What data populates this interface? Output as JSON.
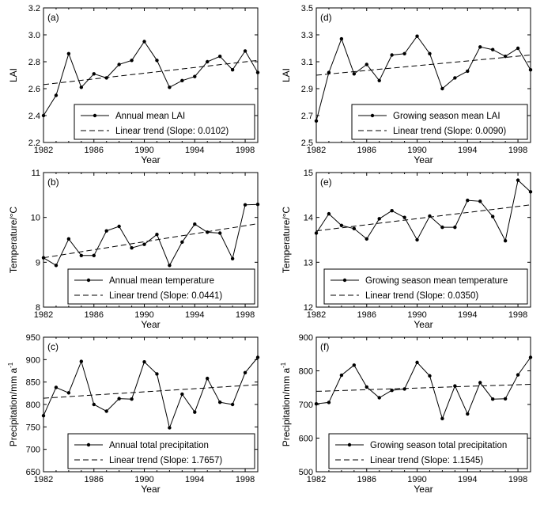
{
  "chart_data": [
    {
      "type": "line",
      "panel_label": "(a)",
      "x": [
        1982,
        1983,
        1984,
        1985,
        1986,
        1987,
        1988,
        1989,
        1990,
        1991,
        1992,
        1993,
        1994,
        1995,
        1996,
        1997,
        1998,
        1999
      ],
      "series": [
        {
          "name": "Annual mean LAI",
          "values": [
            2.4,
            2.55,
            2.86,
            2.61,
            2.71,
            2.68,
            2.78,
            2.81,
            2.95,
            2.81,
            2.61,
            2.66,
            2.69,
            2.8,
            2.84,
            2.74,
            2.88,
            2.72
          ]
        }
      ],
      "trend": {
        "name": "Linear trend (Slope: 0.0102)",
        "start": [
          1982,
          2.63
        ],
        "end": [
          1999,
          2.81
        ]
      },
      "xlabel": "Year",
      "ylabel": "LAI",
      "xlim": [
        1982,
        1999
      ],
      "ylim": [
        2.2,
        3.2
      ],
      "xticks": [
        1982,
        1986,
        1990,
        1994,
        1998
      ],
      "yticks": [
        2.2,
        2.4,
        2.6,
        2.8,
        3.0,
        3.2
      ],
      "ytick_labels": [
        "2.2",
        "2.4",
        "2.6",
        "2.8",
        "3.0",
        "3.2"
      ],
      "legend_position": "bottom-right"
    },
    {
      "type": "line",
      "panel_label": "(d)",
      "x": [
        1982,
        1983,
        1984,
        1985,
        1986,
        1987,
        1988,
        1989,
        1990,
        1991,
        1992,
        1993,
        1994,
        1995,
        1996,
        1997,
        1998,
        1999
      ],
      "series": [
        {
          "name": "Growing season mean LAI",
          "values": [
            2.66,
            3.02,
            3.27,
            3.01,
            3.08,
            2.96,
            3.15,
            3.16,
            3.29,
            3.16,
            2.9,
            2.98,
            3.03,
            3.21,
            3.19,
            3.14,
            3.2,
            3.04
          ]
        }
      ],
      "trend": {
        "name": "Linear trend (Slope: 0.0090)",
        "start": [
          1982,
          3.0
        ],
        "end": [
          1999,
          3.15
        ]
      },
      "xlabel": "Year",
      "ylabel": "LAI",
      "xlim": [
        1982,
        1999
      ],
      "ylim": [
        2.5,
        3.5
      ],
      "xticks": [
        1982,
        1986,
        1990,
        1994,
        1998
      ],
      "yticks": [
        2.5,
        2.7,
        2.9,
        3.1,
        3.3,
        3.5
      ],
      "ytick_labels": [
        "2.5",
        "2.7",
        "2.9",
        "3.1",
        "3.3",
        "3.5"
      ],
      "legend_position": "bottom-right"
    },
    {
      "type": "line",
      "panel_label": "(b)",
      "x": [
        1982,
        1983,
        1984,
        1985,
        1986,
        1987,
        1988,
        1989,
        1990,
        1991,
        1992,
        1993,
        1994,
        1995,
        1996,
        1997,
        1998,
        1999
      ],
      "series": [
        {
          "name": "Annual mean temperature",
          "values": [
            9.1,
            8.93,
            9.52,
            9.15,
            9.15,
            9.7,
            9.8,
            9.32,
            9.4,
            9.62,
            8.93,
            9.45,
            9.85,
            9.67,
            9.65,
            9.08,
            10.28,
            10.29
          ]
        }
      ],
      "trend": {
        "name": "Linear trend (Slope: 0.0441)",
        "start": [
          1982,
          9.1
        ],
        "end": [
          1999,
          9.86
        ]
      },
      "xlabel": "Year",
      "ylabel": "Temperature/°C",
      "xlim": [
        1982,
        1999
      ],
      "ylim": [
        8,
        11
      ],
      "xticks": [
        1982,
        1986,
        1990,
        1994,
        1998
      ],
      "yticks": [
        8,
        9,
        10,
        11
      ],
      "ytick_labels": [
        "8",
        "9",
        "10",
        "11"
      ],
      "legend_position": "bottom-right"
    },
    {
      "type": "line",
      "panel_label": "(e)",
      "x": [
        1982,
        1983,
        1984,
        1985,
        1986,
        1987,
        1988,
        1989,
        1990,
        1991,
        1992,
        1993,
        1994,
        1995,
        1996,
        1997,
        1998,
        1999
      ],
      "series": [
        {
          "name": "Growing season mean temperature",
          "values": [
            13.65,
            14.08,
            13.82,
            13.75,
            13.52,
            13.97,
            14.15,
            14.0,
            13.5,
            14.03,
            13.78,
            13.78,
            14.38,
            14.36,
            14.02,
            13.48,
            14.83,
            14.57
          ]
        }
      ],
      "trend": {
        "name": "Linear trend (Slope: 0.0350)",
        "start": [
          1982,
          13.7
        ],
        "end": [
          1999,
          14.28
        ]
      },
      "xlabel": "Year",
      "ylabel": "Temperature/°C",
      "xlim": [
        1982,
        1999
      ],
      "ylim": [
        12,
        15
      ],
      "xticks": [
        1982,
        1986,
        1990,
        1994,
        1998
      ],
      "yticks": [
        12,
        13,
        14,
        15
      ],
      "ytick_labels": [
        "12",
        "13",
        "14",
        "15"
      ],
      "legend_position": "bottom-right"
    },
    {
      "type": "line",
      "panel_label": "(c)",
      "x": [
        1982,
        1983,
        1984,
        1985,
        1986,
        1987,
        1988,
        1989,
        1990,
        1991,
        1992,
        1993,
        1994,
        1995,
        1996,
        1997,
        1998,
        1999
      ],
      "series": [
        {
          "name": "Annual total precipitation",
          "values": [
            775,
            838,
            826,
            896,
            800,
            785,
            813,
            812,
            895,
            868,
            748,
            823,
            783,
            858,
            805,
            800,
            871,
            905
          ]
        }
      ],
      "trend": {
        "name": "Linear trend (Slope: 1.7657)",
        "start": [
          1982,
          814
        ],
        "end": [
          1999,
          844
        ]
      },
      "xlabel": "Year",
      "ylabel": "Precipitation/mm a",
      "ylabel_sup": "-1",
      "xlim": [
        1982,
        1999
      ],
      "ylim": [
        650,
        950
      ],
      "xticks": [
        1982,
        1986,
        1990,
        1994,
        1998
      ],
      "yticks": [
        650,
        700,
        750,
        800,
        850,
        900,
        950
      ],
      "ytick_labels": [
        "650",
        "700",
        "750",
        "800",
        "850",
        "900",
        "950"
      ],
      "legend_position": "bottom-right"
    },
    {
      "type": "line",
      "panel_label": "(f)",
      "x": [
        1982,
        1983,
        1984,
        1985,
        1986,
        1987,
        1988,
        1989,
        1990,
        1991,
        1992,
        1993,
        1994,
        1995,
        1996,
        1997,
        1998,
        1999
      ],
      "series": [
        {
          "name": "Growing season total precipitation",
          "values": [
            702,
            706,
            787,
            817,
            752,
            720,
            742,
            746,
            825,
            785,
            658,
            755,
            672,
            765,
            716,
            717,
            788,
            840
          ]
        }
      ],
      "trend": {
        "name": "Linear trend (Slope: 1.1545)",
        "start": [
          1982,
          739
        ],
        "end": [
          1999,
          760
        ]
      },
      "xlabel": "Year",
      "ylabel": "Precipitation/mm a",
      "ylabel_sup": "-1",
      "xlim": [
        1982,
        1999
      ],
      "ylim": [
        500,
        900
      ],
      "xticks": [
        1982,
        1986,
        1990,
        1994,
        1998
      ],
      "yticks": [
        500,
        600,
        700,
        800,
        900
      ],
      "ytick_labels": [
        "500",
        "600",
        "700",
        "800",
        "900"
      ],
      "legend_position": "bottom-right"
    }
  ]
}
